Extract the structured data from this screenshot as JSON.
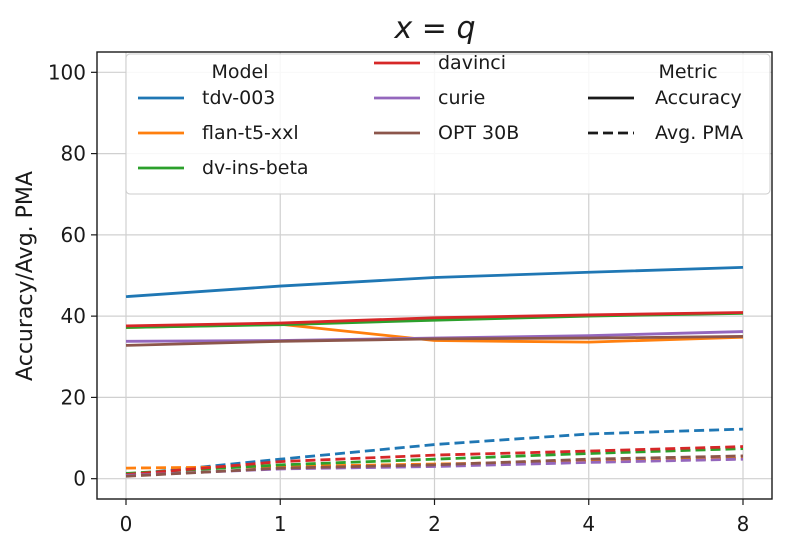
{
  "chart_data": {
    "type": "line",
    "title": "x = q",
    "xlabel": "",
    "ylabel": "Accuracy/Avg. PMA",
    "categories": [
      "0",
      "1",
      "2",
      "4",
      "8"
    ],
    "ylim": [
      -5,
      105
    ],
    "yticks": [
      0,
      20,
      40,
      60,
      80,
      100
    ],
    "grid": true,
    "legend": {
      "placement": "top",
      "model_title": "Model",
      "metric_title": "Metric",
      "metrics": [
        {
          "name": "Accuracy",
          "style": "solid"
        },
        {
          "name": "Avg. PMA",
          "style": "dashed"
        }
      ]
    },
    "series": [
      {
        "name": "tdv-003",
        "color": "#1f77b4",
        "accuracy": [
          44.8,
          47.4,
          49.5,
          50.8,
          52.0
        ],
        "pma": [
          1.0,
          4.8,
          8.4,
          11.0,
          12.2
        ]
      },
      {
        "name": "flan-t5-xxl",
        "color": "#ff7f0e",
        "accuracy": [
          37.2,
          38.0,
          34.0,
          33.6,
          34.8
        ],
        "pma": [
          2.6,
          3.0,
          3.6,
          4.3,
          5.0
        ]
      },
      {
        "name": "dv-ins-beta",
        "color": "#2ca02c",
        "accuracy": [
          37.2,
          37.9,
          39.0,
          40.0,
          40.7
        ],
        "pma": [
          1.3,
          3.4,
          4.8,
          6.2,
          7.4
        ]
      },
      {
        "name": "davinci",
        "color": "#d62728",
        "accuracy": [
          37.6,
          38.3,
          39.6,
          40.3,
          40.9
        ],
        "pma": [
          1.0,
          4.2,
          5.8,
          6.8,
          7.9
        ]
      },
      {
        "name": "curie",
        "color": "#9467bd",
        "accuracy": [
          33.8,
          34.0,
          34.6,
          35.2,
          36.2
        ],
        "pma": [
          0.8,
          2.4,
          3.0,
          4.0,
          4.8
        ]
      },
      {
        "name": "OPT 30B",
        "color": "#8c564b",
        "accuracy": [
          32.8,
          33.8,
          34.4,
          34.6,
          35.0
        ],
        "pma": [
          0.6,
          2.6,
          3.4,
          4.8,
          5.6
        ]
      }
    ]
  }
}
